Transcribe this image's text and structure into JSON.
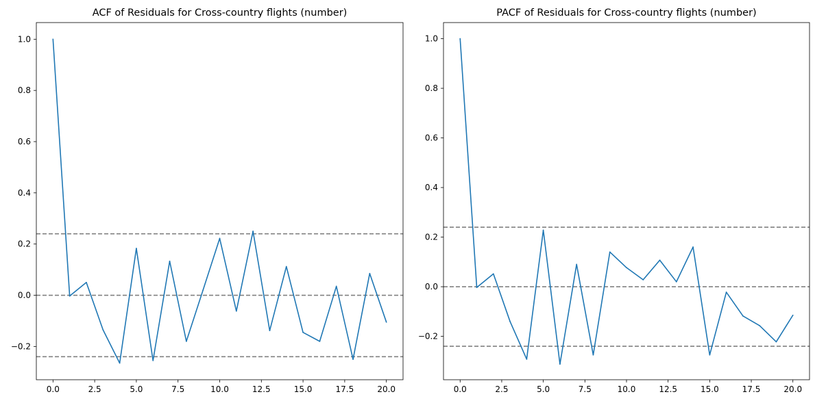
{
  "chart_data": [
    {
      "type": "line",
      "title": "ACF of Residuals for Cross-country flights (number)",
      "xlabel": "",
      "ylabel": "",
      "xlim": [
        -1,
        21
      ],
      "ylim": [
        -0.33,
        1.065
      ],
      "xticks": [
        0,
        2.5,
        5,
        7.5,
        10,
        12.5,
        15,
        17.5,
        20
      ],
      "xtick_labels": [
        "0.0",
        "2.5",
        "5.0",
        "7.5",
        "10.0",
        "12.5",
        "15.0",
        "17.5",
        "20.0"
      ],
      "yticks": [
        -0.2,
        0,
        0.2,
        0.4,
        0.6,
        0.8,
        1.0
      ],
      "ytick_labels": [
        "−0.2",
        "0.0",
        "0.2",
        "0.4",
        "0.6",
        "0.8",
        "1.0"
      ],
      "grid": false,
      "series": [
        {
          "color": "#1f77b4",
          "x": [
            0,
            1,
            2,
            3,
            4,
            5,
            6,
            7,
            8,
            9,
            10,
            11,
            12,
            13,
            14,
            15,
            16,
            17,
            18,
            19,
            20
          ],
          "values": [
            1.0,
            -0.003,
            0.05,
            -0.135,
            -0.265,
            0.183,
            -0.255,
            0.133,
            -0.18,
            0.02,
            0.222,
            -0.062,
            0.25,
            -0.138,
            0.112,
            -0.145,
            -0.18,
            0.035,
            -0.25,
            0.085,
            -0.105
          ]
        }
      ],
      "reference_lines": [
        {
          "y": 0.24,
          "style": "dashed",
          "color": "#808080"
        },
        {
          "y": 0.0,
          "style": "dashed",
          "color": "#808080"
        },
        {
          "y": -0.24,
          "style": "dashed",
          "color": "#808080"
        }
      ]
    },
    {
      "type": "line",
      "title": "PACF of Residuals for Cross-country flights (number)",
      "xlabel": "",
      "ylabel": "",
      "xlim": [
        -1,
        21
      ],
      "ylim": [
        -0.375,
        1.065
      ],
      "xticks": [
        0,
        2.5,
        5,
        7.5,
        10,
        12.5,
        15,
        17.5,
        20
      ],
      "xtick_labels": [
        "0.0",
        "2.5",
        "5.0",
        "7.5",
        "10.0",
        "12.5",
        "15.0",
        "17.5",
        "20.0"
      ],
      "yticks": [
        -0.2,
        0,
        0.2,
        0.4,
        0.6,
        0.8,
        1.0
      ],
      "ytick_labels": [
        "−0.2",
        "0.0",
        "0.2",
        "0.4",
        "0.6",
        "0.8",
        "1.0"
      ],
      "grid": false,
      "series": [
        {
          "color": "#1f77b4",
          "x": [
            0,
            1,
            2,
            3,
            4,
            5,
            6,
            7,
            8,
            9,
            10,
            11,
            12,
            13,
            14,
            15,
            16,
            17,
            18,
            19,
            20
          ],
          "values": [
            1.0,
            -0.003,
            0.052,
            -0.14,
            -0.292,
            0.228,
            -0.312,
            0.09,
            -0.275,
            0.14,
            0.077,
            0.028,
            0.107,
            0.02,
            0.16,
            -0.275,
            -0.022,
            -0.118,
            -0.157,
            -0.222,
            -0.115
          ]
        }
      ],
      "reference_lines": [
        {
          "y": 0.24,
          "style": "dashed",
          "color": "#808080"
        },
        {
          "y": 0.0,
          "style": "dashed",
          "color": "#808080"
        },
        {
          "y": -0.24,
          "style": "dashed",
          "color": "#808080"
        }
      ]
    }
  ]
}
